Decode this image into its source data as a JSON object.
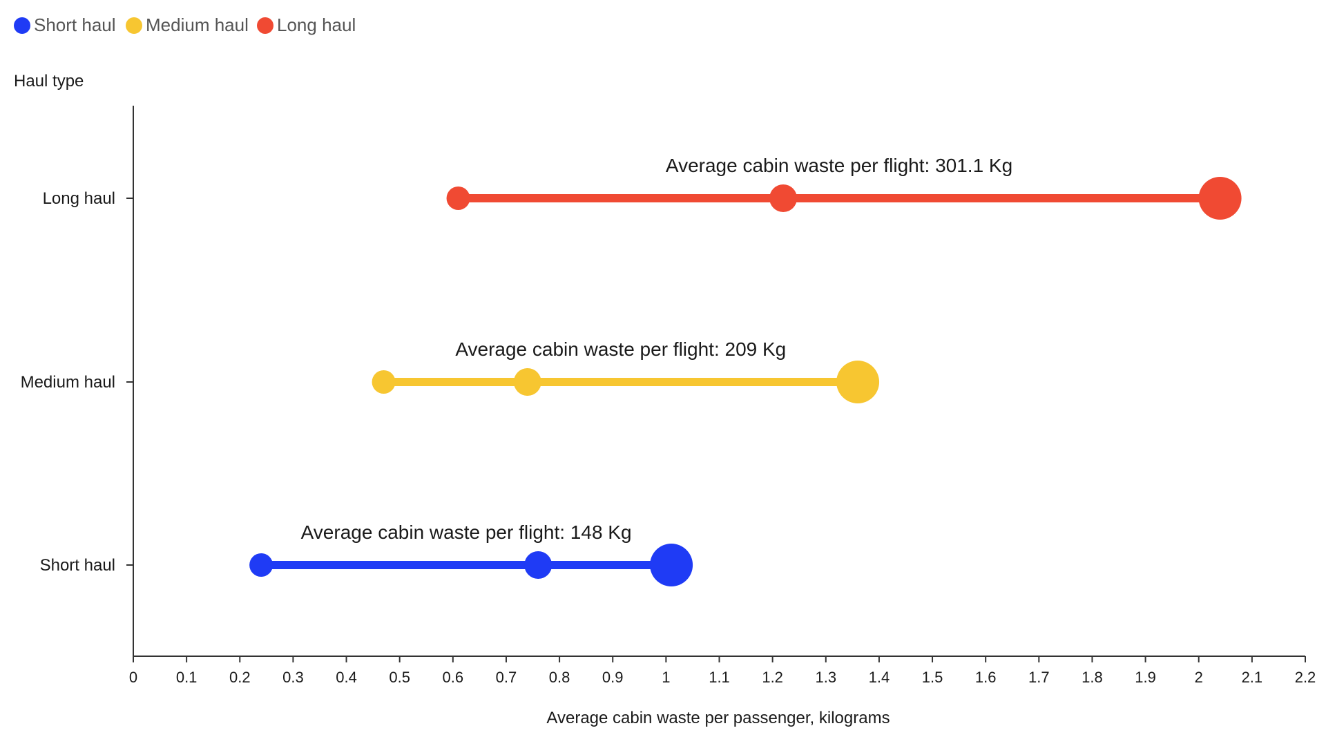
{
  "chart_data": {
    "type": "dot-range",
    "legend": [
      {
        "name": "Short haul",
        "color": "#1f3bf5"
      },
      {
        "name": "Medium haul",
        "color": "#f7c631"
      },
      {
        "name": "Long haul",
        "color": "#f04a33"
      }
    ],
    "ylabel": "Haul type",
    "xlabel": "Average cabin waste per passenger, kilograms",
    "xlim": [
      0,
      2.2
    ],
    "xticks": [
      "0",
      "0.1",
      "0.2",
      "0.3",
      "0.4",
      "0.5",
      "0.6",
      "0.7",
      "0.8",
      "0.9",
      "1",
      "1.1",
      "1.2",
      "1.3",
      "1.4",
      "1.5",
      "1.6",
      "1.7",
      "1.8",
      "1.9",
      "2",
      "2.1",
      "2.2"
    ],
    "series": [
      {
        "name": "Long haul",
        "category": "Long haul",
        "color": "#f04a33",
        "values": [
          0.61,
          1.22,
          2.04
        ],
        "annotation": "Average cabin waste per flight: 301.1 Kg"
      },
      {
        "name": "Medium haul",
        "category": "Medium haul",
        "color": "#f7c631",
        "values": [
          0.47,
          0.74,
          1.36
        ],
        "annotation": "Average cabin waste per flight: 209 Kg"
      },
      {
        "name": "Short haul",
        "category": "Short haul",
        "color": "#1f3bf5",
        "values": [
          0.24,
          0.76,
          1.01
        ],
        "annotation": "Average cabin waste per flight: 148 Kg"
      }
    ]
  }
}
